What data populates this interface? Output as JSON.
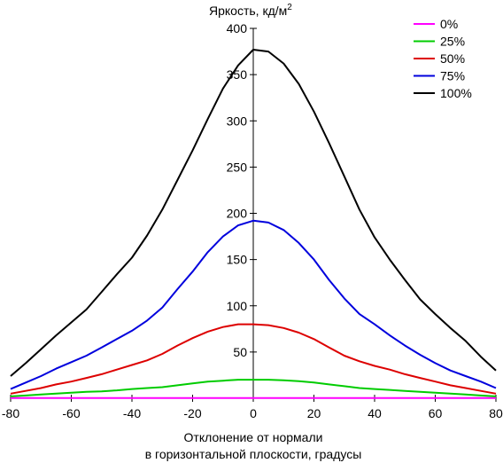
{
  "chart_data": {
    "type": "line",
    "title": "",
    "ylabel": "Яркость, кд/м",
    "ylabel_superscript": "2",
    "xlabel_lines": [
      "Отклонение от нормали",
      "в горизонтальной плоскости, градусы"
    ],
    "xlim": [
      -80,
      80
    ],
    "ylim": [
      0,
      400
    ],
    "x_ticks": [
      -80,
      -60,
      -40,
      -20,
      0,
      20,
      40,
      60,
      80
    ],
    "y_ticks": [
      50,
      100,
      150,
      200,
      250,
      300,
      350,
      400
    ],
    "grid": false,
    "legend_position": "top-right",
    "x": [
      -80,
      -75,
      -70,
      -65,
      -60,
      -55,
      -50,
      -45,
      -40,
      -35,
      -30,
      -25,
      -20,
      -15,
      -10,
      -5,
      0,
      5,
      10,
      15,
      20,
      25,
      30,
      35,
      40,
      45,
      50,
      55,
      60,
      65,
      70,
      75,
      80
    ],
    "series": [
      {
        "name": "0%",
        "color": "#ff00ff",
        "values": [
          0.3,
          0.3,
          0.3,
          0.3,
          0.3,
          0.3,
          0.3,
          0.3,
          0.3,
          0.3,
          0.3,
          0.3,
          0.3,
          0.3,
          0.3,
          0.3,
          0.3,
          0.3,
          0.3,
          0.3,
          0.3,
          0.3,
          0.3,
          0.3,
          0.3,
          0.3,
          0.3,
          0.3,
          0.3,
          0.3,
          0.3,
          0.3,
          0.3
        ]
      },
      {
        "name": "25%",
        "color": "#00cc00",
        "values": [
          2,
          3,
          4,
          5,
          6,
          7,
          7.5,
          8.5,
          10,
          11,
          12,
          14,
          16,
          18,
          19,
          20,
          20,
          20,
          19.5,
          18.5,
          17,
          15,
          13,
          11,
          10,
          9,
          8,
          7,
          6,
          5,
          4,
          3,
          2
        ]
      },
      {
        "name": "50%",
        "color": "#dd0000",
        "values": [
          5,
          8,
          11,
          15,
          18,
          22,
          26,
          31,
          36,
          41,
          48,
          57,
          65,
          72,
          77,
          80,
          80,
          79,
          76,
          71,
          64,
          55,
          46,
          40,
          35,
          31,
          26,
          22,
          18,
          14,
          11,
          8,
          5
        ]
      },
      {
        "name": "75%",
        "color": "#0000dd",
        "values": [
          10,
          17,
          24,
          32,
          39,
          46,
          55,
          64,
          73,
          84,
          98,
          118,
          137,
          158,
          175,
          187,
          192,
          190,
          182,
          168,
          150,
          128,
          108,
          91,
          80,
          68,
          57,
          47,
          38,
          30,
          24,
          18,
          11
        ]
      },
      {
        "name": "100%",
        "color": "#000000",
        "values": [
          24,
          38,
          53,
          68,
          82,
          96,
          115,
          134,
          152,
          176,
          204,
          236,
          268,
          302,
          335,
          360,
          377,
          375,
          362,
          340,
          310,
          276,
          240,
          204,
          174,
          150,
          128,
          107,
          91,
          76,
          62,
          45,
          30
        ]
      }
    ]
  }
}
